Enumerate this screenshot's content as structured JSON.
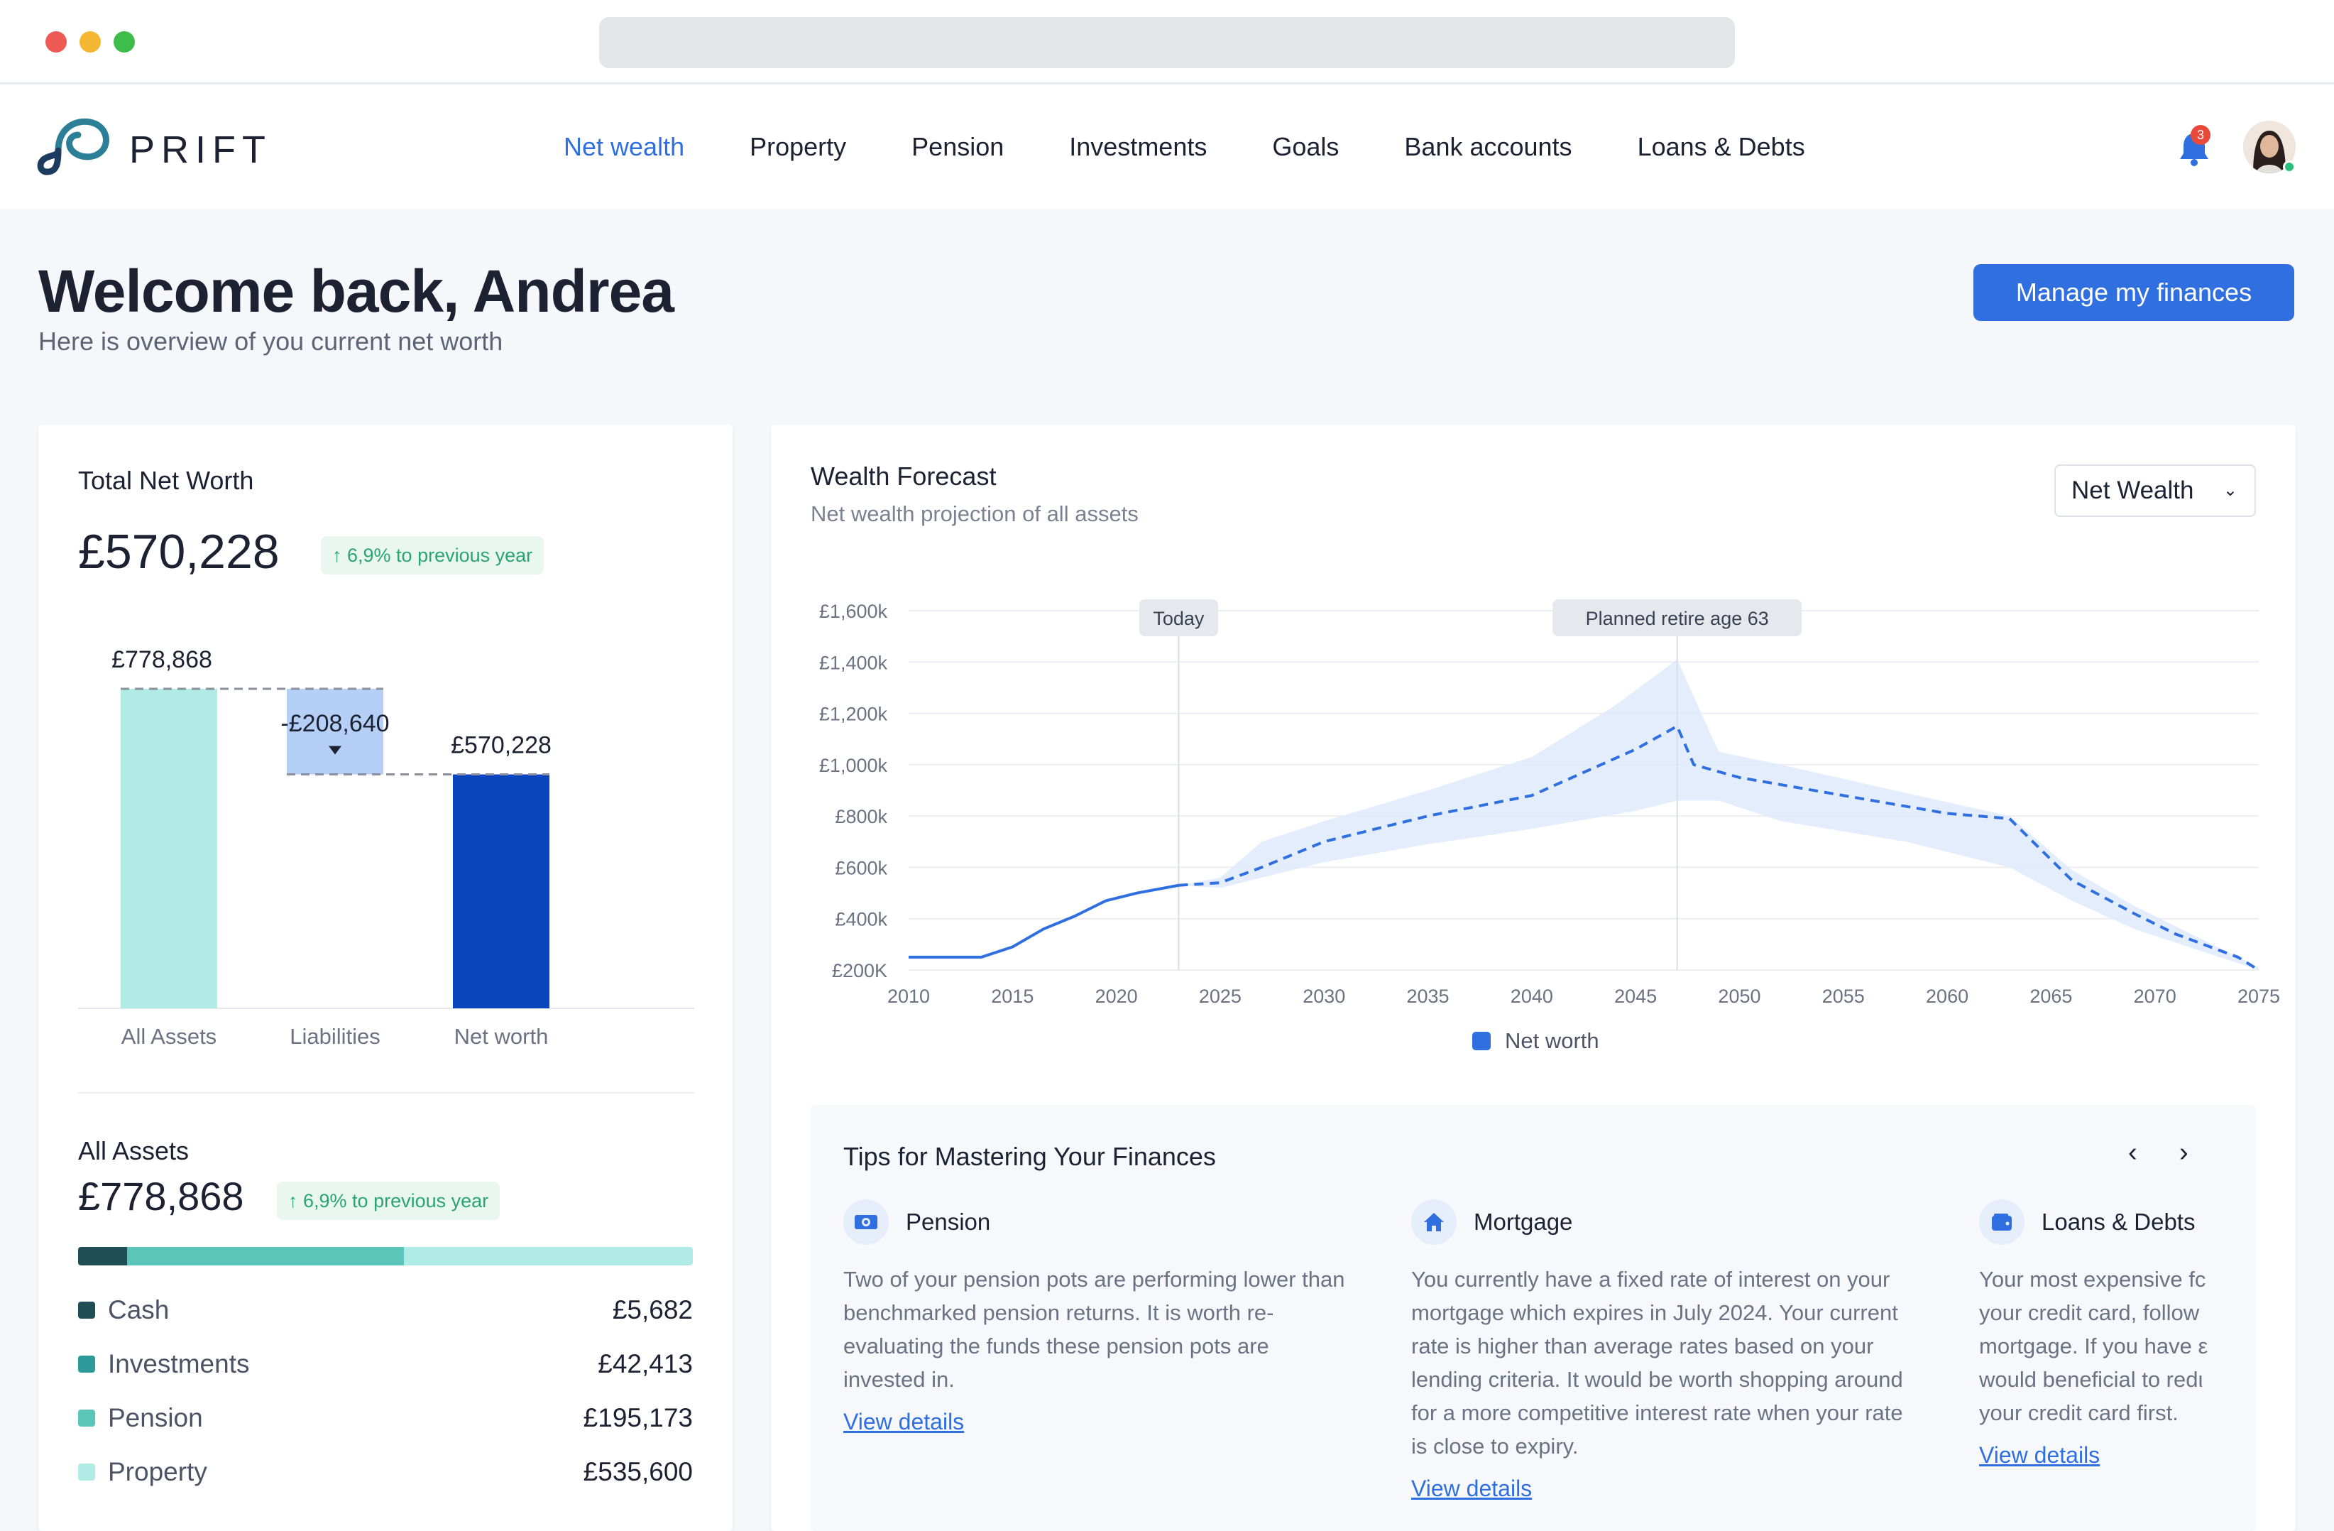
{
  "nav": {
    "brand": "PRIFT",
    "items": [
      {
        "label": "Net wealth",
        "active": true
      },
      {
        "label": "Property",
        "active": false
      },
      {
        "label": "Pension",
        "active": false
      },
      {
        "label": "Investments",
        "active": false
      },
      {
        "label": "Goals",
        "active": false
      },
      {
        "label": "Bank accounts",
        "active": false
      },
      {
        "label": "Loans & Debts",
        "active": false
      }
    ],
    "notification_count": "3",
    "icons": [
      "bell-icon",
      "avatar"
    ]
  },
  "welcome": {
    "title": "Welcome back, Andrea",
    "subtitle": "Here is overview of you current net worth",
    "manage_button": "Manage my finances"
  },
  "total_net_worth": {
    "label": "Total Net Worth",
    "value": "£570,228",
    "change": "↑ 6,9% to previous year"
  },
  "breakdown_chart": {
    "type": "bar",
    "categories": [
      "All Assets",
      "Liabilities",
      "Net worth"
    ],
    "values": [
      778868,
      -208640,
      570228
    ],
    "value_labels": [
      "£778,868",
      "-£208,640",
      "£570,228"
    ],
    "colors": [
      "#b1ebe6",
      "#b5cff7",
      "#0b45bd"
    ]
  },
  "forecast": {
    "title": "Wealth Forecast",
    "subtitle": "Net wealth projection of all assets",
    "selector": "Net Wealth",
    "markers": [
      {
        "label": "Today",
        "year": 2023
      },
      {
        "label": "Planned retire age 63",
        "year": 2047
      }
    ],
    "legend": "Net worth"
  },
  "chart_data": {
    "type": "line",
    "y_tick_labels": [
      "£1,600k",
      "£1,400k",
      "£1,200k",
      "£1,000k",
      "£800k",
      "£600k",
      "£400k",
      "£200K"
    ],
    "y_ticks": [
      1600,
      1400,
      1200,
      1000,
      800,
      600,
      400,
      200
    ],
    "x_tick_labels": [
      "2010",
      "2015",
      "2020",
      "2025",
      "2030",
      "2035",
      "2040",
      "2045",
      "2050",
      "2055",
      "2060",
      "2065",
      "2070",
      "2075"
    ],
    "xlim": [
      2010,
      2075
    ],
    "ylim": [
      200,
      1600
    ],
    "grid": true,
    "series": [
      {
        "name": "Net worth",
        "color": "#2f6fe0",
        "actual": {
          "x": [
            2010,
            2012.5,
            2013.5,
            2015,
            2016.5,
            2018,
            2019.5,
            2021,
            2023
          ],
          "y": [
            250,
            250,
            250,
            290,
            360,
            410,
            470,
            500,
            530
          ]
        },
        "projected": {
          "x": [
            2023,
            2025,
            2027,
            2030,
            2035,
            2040,
            2045,
            2047,
            2047.8,
            2050,
            2055,
            2060,
            2063,
            2066,
            2069,
            2071,
            2074,
            2075
          ],
          "y": [
            530,
            540,
            600,
            700,
            800,
            880,
            1060,
            1150,
            1000,
            950,
            880,
            810,
            790,
            550,
            420,
            340,
            250,
            200
          ]
        },
        "band_upper": {
          "x": [
            2023,
            2025,
            2027,
            2030,
            2035,
            2040,
            2044,
            2047,
            2049,
            2052,
            2058,
            2063,
            2066,
            2069,
            2072,
            2075
          ],
          "y": [
            530,
            560,
            700,
            780,
            900,
            1030,
            1230,
            1410,
            1050,
            1000,
            890,
            800,
            590,
            450,
            330,
            210
          ]
        },
        "band_lower": {
          "x": [
            2023,
            2025,
            2027,
            2030,
            2035,
            2040,
            2045,
            2047,
            2049,
            2052,
            2058,
            2063,
            2066,
            2069,
            2072,
            2075
          ],
          "y": [
            530,
            520,
            560,
            620,
            690,
            750,
            820,
            860,
            860,
            780,
            700,
            600,
            470,
            360,
            280,
            200
          ]
        }
      }
    ]
  },
  "tips": {
    "title": "Tips for Mastering Your Finances",
    "prev": "‹",
    "next": "›",
    "items": [
      {
        "icon": "pension-icon",
        "title": "Pension",
        "body": "Two of your pension pots are performing lower than benchmarked pension returns. It is worth re-evaluating the funds these pension pots are invested in.",
        "link": "View details"
      },
      {
        "icon": "home-icon",
        "title": "Mortgage",
        "body": "You currently have a fixed rate of interest on your mortgage which expires in July 2024. Your current rate is higher than average rates based on your lending criteria. It would be worth shopping around for a more competitive interest rate when your rate is close to expiry.",
        "link": "View details"
      },
      {
        "icon": "wallet-icon",
        "title": "Loans & Debts",
        "body": "Your most expensive fc your credit card, follow mortgage. If you have ε would beneficial to redι your credit card first.",
        "link": "View details"
      }
    ]
  },
  "all_assets": {
    "label": "All Assets",
    "value": "£778,868",
    "change": "↑ 6,9% to previous year",
    "items": [
      {
        "name": "Cash",
        "amount": "£5,682",
        "value": 5682,
        "color": "#1f4e55"
      },
      {
        "name": "Investments",
        "amount": "£42,413",
        "value": 42413,
        "color": "#2d9a9a"
      },
      {
        "name": "Pension",
        "amount": "£195,173",
        "value": 195173,
        "color": "#5cc5b9"
      },
      {
        "name": "Property",
        "amount": "£535,600",
        "value": 535600,
        "color": "#b1ebe6"
      }
    ]
  }
}
